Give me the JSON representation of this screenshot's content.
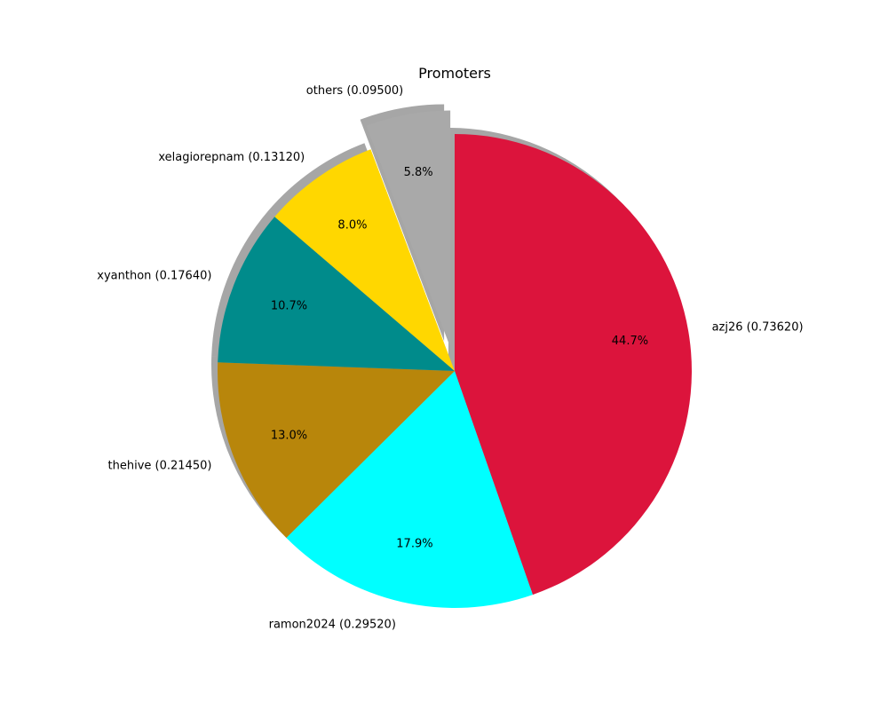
{
  "chart_data": {
    "type": "pie",
    "title": "Promoters",
    "slices": [
      {
        "label": "azj26 (0.73620)",
        "value": 0.7362,
        "percent_label": "44.7%",
        "color": "#dc143c"
      },
      {
        "label": "ramon2024 (0.29520)",
        "value": 0.2952,
        "percent_label": "17.9%",
        "color": "#00ffff"
      },
      {
        "label": "thehive (0.21450)",
        "value": 0.2145,
        "percent_label": "13.0%",
        "color": "#b8860b"
      },
      {
        "label": "xyanthon (0.17640)",
        "value": 0.1764,
        "percent_label": "10.7%",
        "color": "#008b8b"
      },
      {
        "label": "xelagiorepnam (0.13120)",
        "value": 0.1312,
        "percent_label": "8.0%",
        "color": "#ffd700"
      },
      {
        "label": "others (0.09500)",
        "value": 0.095,
        "percent_label": "5.8%",
        "color": "#a9a9a9",
        "exploded": true
      }
    ],
    "start_angle": "top",
    "direction": "clockwise",
    "shadow": true,
    "legend": "none"
  }
}
